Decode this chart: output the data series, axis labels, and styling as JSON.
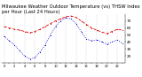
{
  "title": "Milwaukee Weather Outdoor Temperature (vs) THSW Index per Hour (Last 24 Hours)",
  "red_y": [
    62,
    60,
    58,
    57,
    55,
    53,
    55,
    58,
    62,
    66,
    70,
    73,
    76,
    77,
    75,
    70,
    65,
    60,
    57,
    54,
    52,
    55,
    58,
    57
  ],
  "blue_y": [
    48,
    42,
    36,
    28,
    20,
    16,
    18,
    26,
    36,
    50,
    62,
    70,
    74,
    73,
    66,
    55,
    44,
    42,
    43,
    40,
    37,
    40,
    43,
    38
  ],
  "x": [
    0,
    1,
    2,
    3,
    4,
    5,
    6,
    7,
    8,
    9,
    10,
    11,
    12,
    13,
    14,
    15,
    16,
    17,
    18,
    19,
    20,
    21,
    22,
    23
  ],
  "ylim": [
    10,
    80
  ],
  "yticks": [
    20,
    30,
    40,
    50,
    60,
    70
  ],
  "grid_positions": [
    0,
    2,
    4,
    6,
    8,
    10,
    12,
    14,
    16,
    18,
    20,
    22
  ],
  "red_color": "#dd0000",
  "blue_color": "#0000cc",
  "grid_color": "#bbbbbb",
  "bg_color": "#ffffff",
  "title_fontsize": 3.8,
  "tick_fontsize": 3.0,
  "line_width": 0.6,
  "marker_size": 1.0
}
